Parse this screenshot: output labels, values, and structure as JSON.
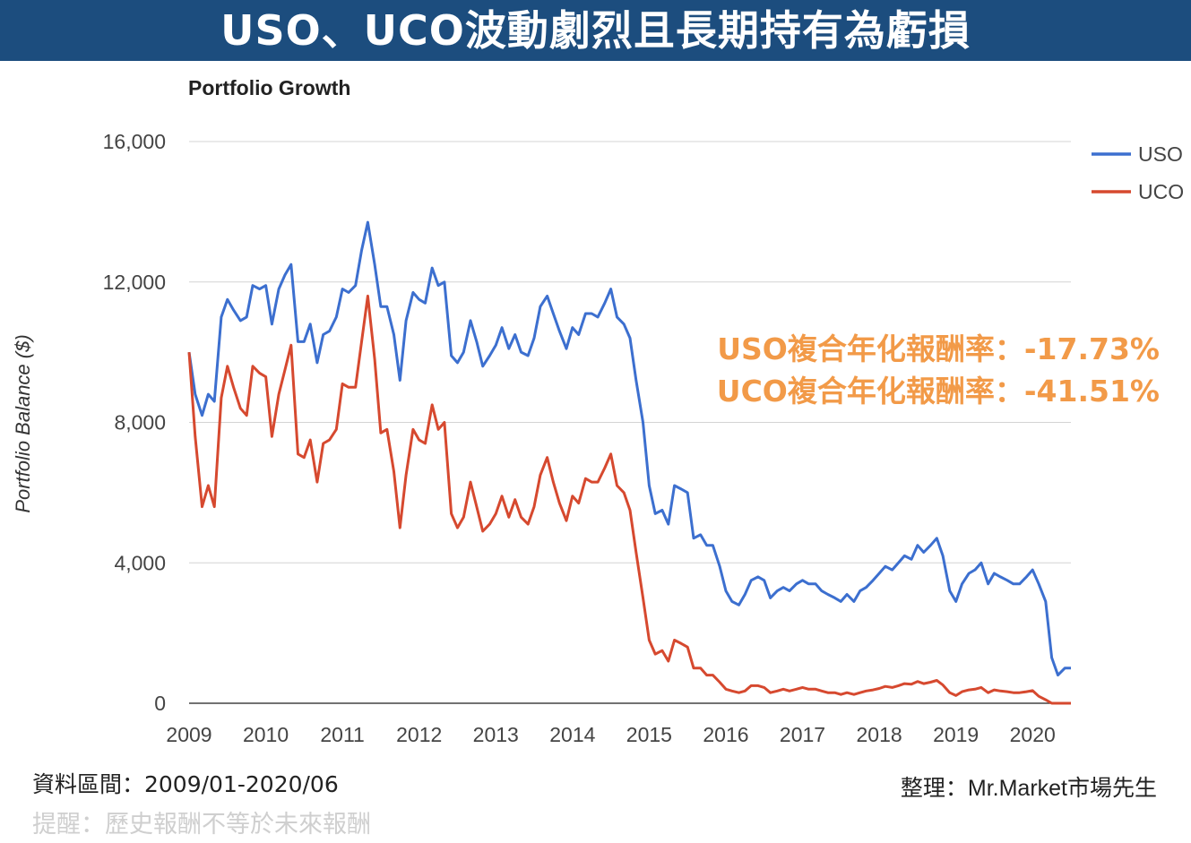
{
  "banner": {
    "title": "USO、UCO波動劇烈且長期持有為虧損"
  },
  "chart_data": {
    "type": "line",
    "title": "Portfolio Growth",
    "ylabel": "Portfolio Balance ($)",
    "xlabel": "",
    "ylim": [
      0,
      16000
    ],
    "xlim": [
      2009.0,
      2020.5
    ],
    "yticks": [
      0,
      4000,
      8000,
      12000,
      16000
    ],
    "ytick_labels": [
      "0",
      "4,000",
      "8,000",
      "12,000",
      "16,000"
    ],
    "xticks": [
      2009,
      2010,
      2011,
      2012,
      2013,
      2014,
      2015,
      2016,
      2017,
      2018,
      2019,
      2020
    ],
    "xtick_labels": [
      "2009",
      "2010",
      "2011",
      "2012",
      "2013",
      "2014",
      "2015",
      "2016",
      "2017",
      "2018",
      "2019",
      "2020"
    ],
    "grid": true,
    "legend": "top-right",
    "series": [
      {
        "name": "USO",
        "color": "#3c6fcf",
        "x": [
          2009.0,
          2009.08,
          2009.17,
          2009.25,
          2009.33,
          2009.42,
          2009.5,
          2009.58,
          2009.67,
          2009.75,
          2009.83,
          2009.92,
          2010.0,
          2010.08,
          2010.17,
          2010.25,
          2010.33,
          2010.42,
          2010.5,
          2010.58,
          2010.67,
          2010.75,
          2010.83,
          2010.92,
          2011.0,
          2011.08,
          2011.17,
          2011.25,
          2011.33,
          2011.42,
          2011.5,
          2011.58,
          2011.67,
          2011.75,
          2011.83,
          2011.92,
          2012.0,
          2012.08,
          2012.17,
          2012.25,
          2012.33,
          2012.42,
          2012.5,
          2012.58,
          2012.67,
          2012.75,
          2012.83,
          2012.92,
          2013.0,
          2013.08,
          2013.17,
          2013.25,
          2013.33,
          2013.42,
          2013.5,
          2013.58,
          2013.67,
          2013.75,
          2013.83,
          2013.92,
          2014.0,
          2014.08,
          2014.17,
          2014.25,
          2014.33,
          2014.42,
          2014.5,
          2014.58,
          2014.67,
          2014.75,
          2014.83,
          2014.92,
          2015.0,
          2015.08,
          2015.17,
          2015.25,
          2015.33,
          2015.42,
          2015.5,
          2015.58,
          2015.67,
          2015.75,
          2015.83,
          2015.92,
          2016.0,
          2016.08,
          2016.17,
          2016.25,
          2016.33,
          2016.42,
          2016.5,
          2016.58,
          2016.67,
          2016.75,
          2016.83,
          2016.92,
          2017.0,
          2017.08,
          2017.17,
          2017.25,
          2017.33,
          2017.42,
          2017.5,
          2017.58,
          2017.67,
          2017.75,
          2017.83,
          2017.92,
          2018.0,
          2018.08,
          2018.17,
          2018.25,
          2018.33,
          2018.42,
          2018.5,
          2018.58,
          2018.67,
          2018.75,
          2018.83,
          2018.92,
          2019.0,
          2019.08,
          2019.17,
          2019.25,
          2019.33,
          2019.42,
          2019.5,
          2019.58,
          2019.67,
          2019.75,
          2019.83,
          2019.92,
          2020.0,
          2020.08,
          2020.17,
          2020.25,
          2020.33,
          2020.42,
          2020.5
        ],
        "y": [
          10000,
          8800,
          8200,
          8800,
          8600,
          11000,
          11500,
          11200,
          10900,
          11000,
          11900,
          11800,
          11900,
          10800,
          11800,
          12200,
          12500,
          10300,
          10300,
          10800,
          9700,
          10500,
          10600,
          11000,
          11800,
          11700,
          11900,
          12900,
          13700,
          12500,
          11300,
          11300,
          10500,
          9200,
          10900,
          11700,
          11500,
          11400,
          12400,
          11900,
          12000,
          9900,
          9700,
          10000,
          10900,
          10300,
          9600,
          9900,
          10200,
          10700,
          10100,
          10500,
          10000,
          9900,
          10400,
          11300,
          11600,
          11100,
          10600,
          10100,
          10700,
          10500,
          11100,
          11100,
          11000,
          11400,
          11800,
          11000,
          10800,
          10400,
          9200,
          8000,
          6200,
          5400,
          5500,
          5100,
          6200,
          6100,
          6000,
          4700,
          4800,
          4500,
          4500,
          3900,
          3200,
          2900,
          2800,
          3100,
          3500,
          3600,
          3500,
          3000,
          3200,
          3300,
          3200,
          3400,
          3500,
          3400,
          3400,
          3200,
          3100,
          3000,
          2900,
          3100,
          2900,
          3200,
          3300,
          3500,
          3700,
          3900,
          3800,
          4000,
          4200,
          4100,
          4500,
          4300,
          4500,
          4700,
          4200,
          3200,
          2900,
          3400,
          3700,
          3800,
          4000,
          3400,
          3700,
          3600,
          3500,
          3400,
          3400,
          3600,
          3800,
          3400,
          2900,
          1300,
          800,
          1000,
          1000
        ]
      },
      {
        "name": "UCO",
        "color": "#d6492f",
        "x": [
          2009.0,
          2009.08,
          2009.17,
          2009.25,
          2009.33,
          2009.42,
          2009.5,
          2009.58,
          2009.67,
          2009.75,
          2009.83,
          2009.92,
          2010.0,
          2010.08,
          2010.17,
          2010.25,
          2010.33,
          2010.42,
          2010.5,
          2010.58,
          2010.67,
          2010.75,
          2010.83,
          2010.92,
          2011.0,
          2011.08,
          2011.17,
          2011.25,
          2011.33,
          2011.42,
          2011.5,
          2011.58,
          2011.67,
          2011.75,
          2011.83,
          2011.92,
          2012.0,
          2012.08,
          2012.17,
          2012.25,
          2012.33,
          2012.42,
          2012.5,
          2012.58,
          2012.67,
          2012.75,
          2012.83,
          2012.92,
          2013.0,
          2013.08,
          2013.17,
          2013.25,
          2013.33,
          2013.42,
          2013.5,
          2013.58,
          2013.67,
          2013.75,
          2013.83,
          2013.92,
          2014.0,
          2014.08,
          2014.17,
          2014.25,
          2014.33,
          2014.42,
          2014.5,
          2014.58,
          2014.67,
          2014.75,
          2014.83,
          2014.92,
          2015.0,
          2015.08,
          2015.17,
          2015.25,
          2015.33,
          2015.42,
          2015.5,
          2015.58,
          2015.67,
          2015.75,
          2015.83,
          2015.92,
          2016.0,
          2016.08,
          2016.17,
          2016.25,
          2016.33,
          2016.42,
          2016.5,
          2016.58,
          2016.67,
          2016.75,
          2016.83,
          2016.92,
          2017.0,
          2017.08,
          2017.17,
          2017.25,
          2017.33,
          2017.42,
          2017.5,
          2017.58,
          2017.67,
          2017.75,
          2017.83,
          2017.92,
          2018.0,
          2018.08,
          2018.17,
          2018.25,
          2018.33,
          2018.42,
          2018.5,
          2018.58,
          2018.67,
          2018.75,
          2018.83,
          2018.92,
          2019.0,
          2019.08,
          2019.17,
          2019.25,
          2019.33,
          2019.42,
          2019.5,
          2019.58,
          2019.67,
          2019.75,
          2019.83,
          2019.92,
          2020.0,
          2020.08,
          2020.17,
          2020.25,
          2020.33,
          2020.42,
          2020.5
        ],
        "y": [
          10000,
          7600,
          5600,
          6200,
          5600,
          8700,
          9600,
          9000,
          8400,
          8200,
          9600,
          9400,
          9300,
          7600,
          8800,
          9500,
          10200,
          7100,
          7000,
          7500,
          6300,
          7400,
          7500,
          7800,
          9100,
          9000,
          9000,
          10300,
          11600,
          9800,
          7700,
          7800,
          6600,
          5000,
          6500,
          7800,
          7500,
          7400,
          8500,
          7800,
          8000,
          5400,
          5000,
          5300,
          6300,
          5600,
          4900,
          5100,
          5400,
          5900,
          5300,
          5800,
          5300,
          5100,
          5600,
          6500,
          7000,
          6300,
          5700,
          5200,
          5900,
          5700,
          6400,
          6300,
          6300,
          6700,
          7100,
          6200,
          6000,
          5500,
          4300,
          3000,
          1800,
          1400,
          1500,
          1200,
          1800,
          1700,
          1600,
          1000,
          1000,
          800,
          800,
          600,
          400,
          350,
          300,
          350,
          500,
          500,
          450,
          300,
          350,
          400,
          350,
          400,
          450,
          400,
          400,
          350,
          300,
          300,
          250,
          300,
          250,
          300,
          350,
          380,
          420,
          480,
          450,
          500,
          560,
          540,
          620,
          560,
          600,
          650,
          520,
          300,
          220,
          330,
          380,
          400,
          450,
          300,
          380,
          350,
          330,
          300,
          300,
          330,
          360,
          200,
          100,
          0,
          0,
          0,
          0
        ]
      }
    ],
    "annotations": [
      {
        "text": "USO複合年化報酬率：-17.73%",
        "color": "#f29a48"
      },
      {
        "text": "UCO複合年化報酬率：-41.51%",
        "color": "#f29a48"
      }
    ]
  },
  "footer": {
    "date_range": "資料區間：2009/01-2020/06",
    "reminder": "提醒：歷史報酬不等於未來報酬",
    "credit_prefix": "整理：",
    "credit_name": "Mr.Market市場先生"
  }
}
